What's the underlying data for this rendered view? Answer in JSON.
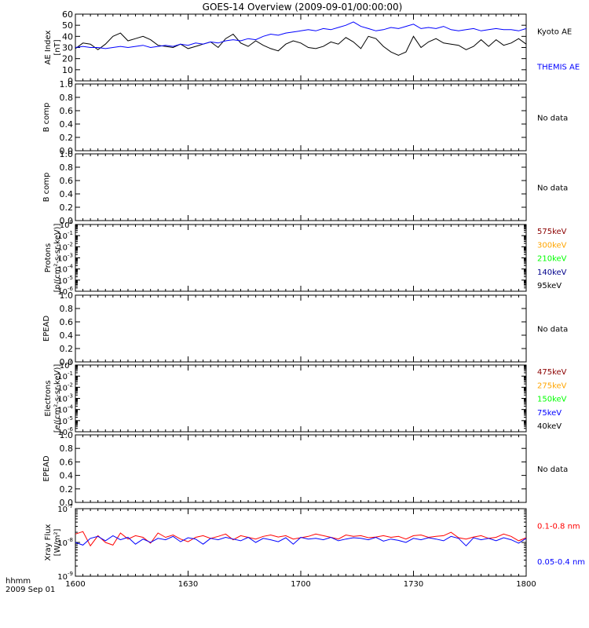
{
  "title": "GOES-14 Overview (2009-09-01/00:00:00)",
  "time_axis": {
    "ticks": [
      "1600",
      "1630",
      "1700",
      "1730",
      "1800"
    ],
    "corner_label_1": "hhmm",
    "corner_label_2": "2009 Sep 01"
  },
  "colors": {
    "black": "#000000",
    "blue": "#0000ff",
    "red": "#ff0000",
    "orange": "#ffa500",
    "green": "#00ff00",
    "darkred": "#8b0000",
    "darkblue": "#00008b"
  },
  "chart_data": [
    {
      "id": "ae",
      "type": "line",
      "ylabel_lines": [
        "AE Index",
        "[nT]"
      ],
      "ylim": [
        0,
        60
      ],
      "yticks": [
        "0",
        "10",
        "20",
        "30",
        "40",
        "50",
        "60"
      ],
      "x_range": [
        0,
        120
      ],
      "series": [
        {
          "name": "Kyoto AE",
          "color": "#000000",
          "x": [
            0,
            2,
            4,
            6,
            8,
            10,
            12,
            14,
            16,
            18,
            20,
            22,
            24,
            26,
            28,
            30,
            32,
            34,
            36,
            38,
            40,
            42,
            44,
            46,
            48,
            50,
            52,
            54,
            56,
            58,
            60,
            62,
            64,
            66,
            68,
            70,
            72,
            74,
            76,
            78,
            80,
            82,
            84,
            86,
            88,
            90,
            92,
            94,
            96,
            98,
            100,
            102,
            104,
            106,
            108,
            110,
            112,
            114,
            116,
            118,
            120
          ],
          "values": [
            29,
            34,
            33,
            28,
            33,
            40,
            43,
            36,
            38,
            40,
            37,
            32,
            31,
            30,
            33,
            29,
            31,
            33,
            35,
            30,
            38,
            42,
            34,
            31,
            36,
            32,
            29,
            27,
            33,
            36,
            34,
            30,
            29,
            31,
            35,
            33,
            39,
            35,
            29,
            40,
            38,
            31,
            26,
            23,
            26,
            40,
            30,
            35,
            38,
            34,
            33,
            32,
            28,
            31,
            37,
            31,
            37,
            32,
            34,
            38,
            33
          ]
        },
        {
          "name": "THEMIS AE",
          "color": "#0000ff",
          "x": [
            0,
            2,
            4,
            6,
            8,
            10,
            12,
            14,
            16,
            18,
            20,
            22,
            24,
            26,
            28,
            30,
            32,
            34,
            36,
            38,
            40,
            42,
            44,
            46,
            48,
            50,
            52,
            54,
            56,
            58,
            60,
            62,
            64,
            66,
            68,
            70,
            72,
            74,
            76,
            78,
            80,
            82,
            84,
            86,
            88,
            90,
            92,
            94,
            96,
            98,
            100,
            102,
            104,
            106,
            108,
            110,
            112,
            114,
            116,
            118,
            120
          ],
          "values": [
            30,
            31,
            30,
            30,
            29,
            30,
            31,
            30,
            31,
            32,
            30,
            31,
            32,
            31,
            33,
            32,
            34,
            33,
            35,
            34,
            36,
            37,
            36,
            38,
            37,
            40,
            42,
            41,
            43,
            44,
            45,
            46,
            45,
            47,
            46,
            48,
            50,
            53,
            49,
            47,
            45,
            46,
            48,
            47,
            49,
            51,
            47,
            48,
            47,
            49,
            46,
            45,
            46,
            47,
            45,
            46,
            47,
            46,
            46,
            45,
            47
          ]
        }
      ],
      "legend": [
        {
          "label": "Kyoto AE",
          "color": "#000000"
        },
        {
          "label": "THEMIS AE",
          "color": "#0000ff"
        }
      ]
    },
    {
      "id": "b1",
      "type": "line",
      "ylabel_lines": [
        "B comp"
      ],
      "ylim": [
        0,
        1
      ],
      "yticks": [
        "0.0",
        "0.2",
        "0.4",
        "0.6",
        "0.8",
        "1.0"
      ],
      "series": [],
      "note": "No data"
    },
    {
      "id": "b2",
      "type": "line",
      "ylabel_lines": [
        "B comp"
      ],
      "ylim": [
        0,
        1
      ],
      "yticks": [
        "0.0",
        "0.2",
        "0.4",
        "0.6",
        "0.8",
        "1.0"
      ],
      "series": [],
      "note": "No data"
    },
    {
      "id": "protons",
      "type": "line",
      "ylabel_lines": [
        "Protons",
        "[p/(cm²-s-sr-keV)]"
      ],
      "yscale": "log",
      "ylim": [
        "1e-6",
        "1e0"
      ],
      "yticks": [
        {
          "base": "10",
          "exp": "-6"
        },
        {
          "base": "10",
          "exp": "-5"
        },
        {
          "base": "10",
          "exp": "-4"
        },
        {
          "base": "10",
          "exp": "-3"
        },
        {
          "base": "10",
          "exp": "-2"
        },
        {
          "base": "10",
          "exp": "-1"
        },
        {
          "base": "10",
          "exp": "0"
        }
      ],
      "series": [],
      "legend": [
        {
          "label": "575keV",
          "color": "#8b0000"
        },
        {
          "label": "300keV",
          "color": "#ffa500"
        },
        {
          "label": "210keV",
          "color": "#00ff00"
        },
        {
          "label": "140keV",
          "color": "#00008b"
        },
        {
          "label": "95keV",
          "color": "#000000"
        }
      ]
    },
    {
      "id": "epead1",
      "type": "line",
      "ylabel_lines": [
        "EPEAD"
      ],
      "ylim": [
        0,
        1
      ],
      "yticks": [
        "0.0",
        "0.2",
        "0.4",
        "0.6",
        "0.8",
        "1.0"
      ],
      "series": [],
      "note": "No data"
    },
    {
      "id": "electrons",
      "type": "line",
      "ylabel_lines": [
        "Electrons",
        "[e/(cm²-s-sr-keV)]"
      ],
      "yscale": "log",
      "ylim": [
        "1e-6",
        "1e0"
      ],
      "yticks": [
        {
          "base": "10",
          "exp": "-6"
        },
        {
          "base": "10",
          "exp": "-5"
        },
        {
          "base": "10",
          "exp": "-4"
        },
        {
          "base": "10",
          "exp": "-3"
        },
        {
          "base": "10",
          "exp": "-2"
        },
        {
          "base": "10",
          "exp": "-1"
        },
        {
          "base": "10",
          "exp": "0"
        }
      ],
      "series": [],
      "legend": [
        {
          "label": "475keV",
          "color": "#8b0000"
        },
        {
          "label": "275keV",
          "color": "#ffa500"
        },
        {
          "label": "150keV",
          "color": "#00ff00"
        },
        {
          "label": "75keV",
          "color": "#0000ff"
        },
        {
          "label": "40keV",
          "color": "#000000"
        }
      ]
    },
    {
      "id": "epead2",
      "type": "line",
      "ylabel_lines": [
        "EPEAD"
      ],
      "ylim": [
        0,
        1
      ],
      "yticks": [
        "0.0",
        "0.2",
        "0.4",
        "0.6",
        "0.8",
        "1.0"
      ],
      "series": [],
      "note": "No data"
    },
    {
      "id": "xray",
      "type": "line",
      "ylabel_lines": [
        "Xray Flux",
        "[W/m²]"
      ],
      "yscale": "log",
      "ylim": [
        "1e-9",
        "1e-7"
      ],
      "yticks": [
        {
          "base": "10",
          "exp": "-9"
        },
        {
          "base": "10",
          "exp": "-8"
        },
        {
          "base": "10",
          "exp": "-7"
        }
      ],
      "x_range": [
        0,
        120
      ],
      "series": [
        {
          "name": "0.1-0.8 nm",
          "color": "#ff0000",
          "x": [
            0,
            2,
            4,
            6,
            8,
            10,
            12,
            14,
            16,
            18,
            20,
            22,
            24,
            26,
            28,
            30,
            32,
            34,
            36,
            38,
            40,
            42,
            44,
            46,
            48,
            50,
            52,
            54,
            56,
            58,
            60,
            62,
            64,
            66,
            68,
            70,
            72,
            74,
            76,
            78,
            80,
            82,
            84,
            86,
            88,
            90,
            92,
            94,
            96,
            98,
            100,
            102,
            104,
            106,
            108,
            110,
            112,
            114,
            116,
            118,
            120
          ],
          "log10_values": [
            -7.75,
            -7.68,
            -8.1,
            -7.8,
            -8.0,
            -8.08,
            -7.72,
            -7.9,
            -7.8,
            -7.85,
            -8.02,
            -7.72,
            -7.85,
            -7.78,
            -7.9,
            -7.98,
            -7.85,
            -7.8,
            -7.88,
            -7.82,
            -7.75,
            -7.92,
            -7.8,
            -7.85,
            -7.9,
            -7.82,
            -7.78,
            -7.84,
            -7.8,
            -7.9,
            -7.86,
            -7.82,
            -7.75,
            -7.8,
            -7.85,
            -7.9,
            -7.78,
            -7.82,
            -7.8,
            -7.86,
            -7.84,
            -7.8,
            -7.85,
            -7.82,
            -7.9,
            -7.8,
            -7.78,
            -7.85,
            -7.82,
            -7.8,
            -7.7,
            -7.86,
            -7.9,
            -7.84,
            -7.8,
            -7.88,
            -7.85,
            -7.75,
            -7.82,
            -7.95,
            -7.86
          ]
        },
        {
          "name": "0.05-0.4 nm",
          "color": "#0000ff",
          "x": [
            0,
            2,
            4,
            6,
            8,
            10,
            12,
            14,
            16,
            18,
            20,
            22,
            24,
            26,
            28,
            30,
            32,
            34,
            36,
            38,
            40,
            42,
            44,
            46,
            48,
            50,
            52,
            54,
            56,
            58,
            60,
            62,
            64,
            66,
            68,
            70,
            72,
            74,
            76,
            78,
            80,
            82,
            84,
            86,
            88,
            90,
            92,
            94,
            96,
            98,
            100,
            102,
            104,
            106,
            108,
            110,
            112,
            114,
            116,
            118,
            120
          ],
          "log10_values": [
            -8.0,
            -8.08,
            -7.88,
            -7.82,
            -7.95,
            -7.8,
            -7.92,
            -7.85,
            -8.05,
            -7.9,
            -8.0,
            -7.88,
            -7.92,
            -7.82,
            -7.98,
            -7.86,
            -7.9,
            -8.05,
            -7.88,
            -7.92,
            -7.85,
            -7.9,
            -7.95,
            -7.85,
            -8.0,
            -7.88,
            -7.92,
            -7.98,
            -7.86,
            -8.05,
            -7.85,
            -7.9,
            -7.88,
            -7.92,
            -7.85,
            -7.95,
            -7.9,
            -7.86,
            -7.88,
            -7.92,
            -7.85,
            -7.96,
            -7.9,
            -7.94,
            -8.0,
            -7.88,
            -7.92,
            -7.86,
            -7.9,
            -7.95,
            -7.82,
            -7.88,
            -8.1,
            -7.86,
            -7.92,
            -7.88,
            -7.95,
            -7.86,
            -7.92,
            -8.02,
            -7.88
          ]
        }
      ],
      "legend": [
        {
          "label": "0.1-0.8 nm",
          "color": "#ff0000"
        },
        {
          "label": "0.05-0.4 nm",
          "color": "#0000ff"
        }
      ]
    }
  ]
}
